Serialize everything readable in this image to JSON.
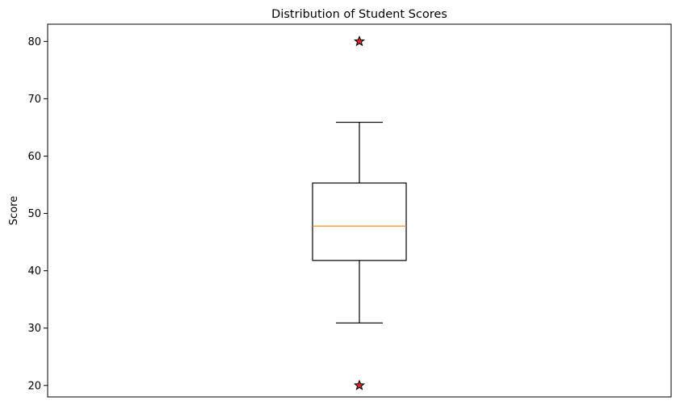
{
  "chart_data": {
    "type": "box",
    "title": "Distribution of Student Scores",
    "xlabel": "",
    "ylabel": "Score",
    "ylim": [
      18.0,
      83.0
    ],
    "yticks": [
      20,
      30,
      40,
      50,
      60,
      70,
      80
    ],
    "grid": false,
    "legend": "none",
    "series": [
      {
        "whisker_low": 30.9,
        "q1": 41.8,
        "median": 47.8,
        "q3": 55.3,
        "whisker_high": 65.9,
        "outliers": [
          80,
          20
        ]
      }
    ],
    "colors": {
      "box": "#000000",
      "median": "#ff7f0e",
      "outlier_fill": "#d62728",
      "outlier_edge": "#000000"
    }
  }
}
